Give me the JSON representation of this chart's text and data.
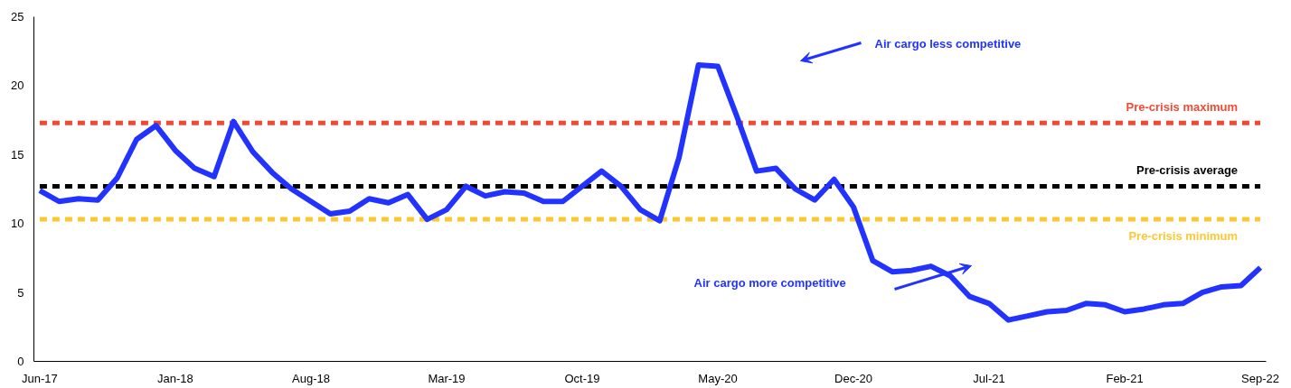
{
  "chart_data": {
    "type": "line",
    "categories": [
      "Jun-17",
      null,
      null,
      null,
      null,
      null,
      null,
      "Jan-18",
      null,
      null,
      null,
      null,
      null,
      null,
      "Aug-18",
      null,
      null,
      null,
      null,
      null,
      null,
      "Mar-19",
      null,
      null,
      null,
      null,
      null,
      null,
      "Oct-19",
      null,
      null,
      null,
      null,
      null,
      null,
      "May-20",
      null,
      null,
      null,
      null,
      null,
      null,
      "Dec-20",
      null,
      null,
      null,
      null,
      null,
      null,
      "Jul-21",
      null,
      null,
      null,
      null,
      null,
      null,
      "Feb-21",
      null,
      null,
      null,
      null,
      null,
      null,
      "Sep-22"
    ],
    "series": [
      {
        "color": "#2233ff",
        "values": [
          12.4,
          11.6,
          11.8,
          11.7,
          13.3,
          16.1,
          17.1,
          15.3,
          14.0,
          13.4,
          17.4,
          15.2,
          13.7,
          12.5,
          11.6,
          10.7,
          10.9,
          11.8,
          11.5,
          12.1,
          10.3,
          11.0,
          12.7,
          12.0,
          12.3,
          12.2,
          11.6,
          11.6,
          12.7,
          13.8,
          12.7,
          11.0,
          10.2,
          14.8,
          21.5,
          21.4,
          17.7,
          13.8,
          14.0,
          12.5,
          11.7,
          13.2,
          11.2,
          7.3,
          6.5,
          6.6,
          6.9,
          6.2,
          4.7,
          4.2,
          3.0,
          3.3,
          3.6,
          3.7,
          4.2,
          4.1,
          3.6,
          3.8,
          4.1,
          4.2,
          5.0,
          5.4,
          5.5,
          6.8
        ]
      }
    ],
    "ylim": [
      0,
      25
    ],
    "yticks": [
      0,
      5,
      10,
      15,
      20,
      25
    ],
    "ref_lines": [
      {
        "axis": "y",
        "value": 17.3,
        "label": "Pre-crisis maximum",
        "color": "#f04a35",
        "line_style": "dashed"
      },
      {
        "axis": "y",
        "value": 12.7,
        "label": "Pre-crisis average",
        "color": "#000000",
        "line_style": "dashed"
      },
      {
        "axis": "y",
        "value": 10.3,
        "label": "Pre-crisis minimum",
        "color": "#fcc832",
        "line_style": "dashed"
      }
    ],
    "annotations": [
      "Air cargo less competitive",
      "Air cargo more competitive"
    ],
    "grid": false,
    "marker": "none",
    "line_style": "solid"
  }
}
